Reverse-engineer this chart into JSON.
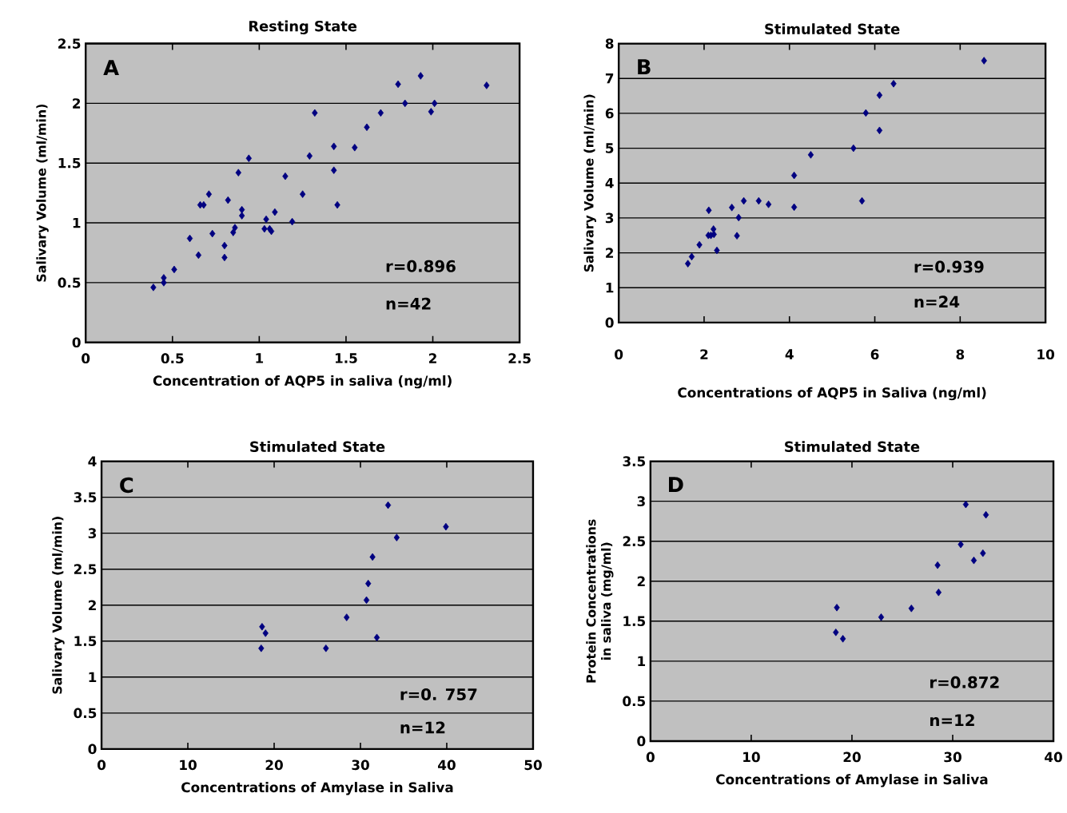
{
  "chart_data": [
    {
      "type": "scatter",
      "title": "Resting State",
      "xlabel": "Concentration of AQP5 in saliva (ng/ml)",
      "ylabel": "Salivary Volume (ml/min)",
      "annotations": [
        "A",
        "r=0.896",
        "n=42"
      ],
      "xlim": [
        0,
        2.5
      ],
      "ylim": [
        0,
        2.5
      ],
      "xticks": [
        0,
        0.5,
        1,
        1.5,
        2,
        2.5
      ],
      "yticks": [
        0,
        0.5,
        1,
        1.5,
        2,
        2.5
      ],
      "grid": "y",
      "marker": "diamond",
      "x": [
        0.39,
        0.45,
        0.45,
        0.51,
        0.6,
        0.65,
        0.66,
        0.68,
        0.71,
        0.73,
        0.8,
        0.8,
        0.82,
        0.85,
        0.86,
        0.88,
        0.9,
        0.9,
        0.94,
        1.03,
        1.04,
        1.06,
        1.07,
        1.09,
        1.15,
        1.19,
        1.25,
        1.29,
        1.32,
        1.43,
        1.43,
        1.45,
        1.55,
        1.62,
        1.7,
        1.8,
        1.84,
        1.93,
        1.99,
        2.01,
        2.31
      ],
      "series": [
        {
          "color": "#000080",
          "values": [
            0.46,
            0.54,
            0.5,
            0.61,
            0.87,
            0.73,
            1.15,
            1.15,
            1.24,
            0.91,
            0.81,
            0.71,
            1.19,
            0.92,
            0.96,
            1.42,
            1.11,
            1.06,
            1.54,
            0.95,
            1.03,
            0.95,
            0.93,
            1.09,
            1.39,
            1.01,
            1.24,
            1.56,
            1.92,
            1.64,
            1.44,
            1.15,
            1.63,
            1.8,
            1.92,
            2.16,
            2.0,
            2.23,
            1.93,
            2.0,
            2.15
          ]
        }
      ]
    },
    {
      "type": "scatter",
      "title": "Stimulated State",
      "xlabel": "Concentrations of AQP5 in Saliva (ng/ml)",
      "ylabel": "Salivary Volume (ml/min)",
      "annotations": [
        "B",
        "r=0.939",
        "n=24"
      ],
      "xlim": [
        0,
        10
      ],
      "ylim": [
        0,
        8
      ],
      "xticks": [
        0,
        2,
        4,
        6,
        8,
        10
      ],
      "yticks": [
        0,
        1,
        2,
        3,
        4,
        5,
        6,
        7,
        8
      ],
      "grid": "y",
      "marker": "diamond",
      "x": [
        1.62,
        1.71,
        1.89,
        2.11,
        2.1,
        2.16,
        2.22,
        2.23,
        2.3,
        2.65,
        2.77,
        2.81,
        2.93,
        3.28,
        3.51,
        4.11,
        4.11,
        4.5,
        5.5,
        5.7,
        5.79,
        6.11,
        6.11,
        6.44,
        8.56
      ],
      "series": [
        {
          "color": "#000080",
          "values": [
            1.69,
            1.89,
            2.23,
            3.22,
            2.5,
            2.5,
            2.68,
            2.53,
            2.07,
            3.3,
            2.49,
            3.01,
            3.49,
            3.49,
            3.39,
            4.22,
            3.31,
            4.81,
            5.0,
            3.49,
            6.01,
            5.51,
            6.52,
            6.85,
            7.51
          ]
        }
      ]
    },
    {
      "type": "scatter",
      "title": "Stimulated State",
      "xlabel": "Concentrations of Amylase in Saliva",
      "ylabel": "Salivary Volume (ml/min)",
      "annotations": [
        "C",
        "r=0. 757",
        "n=12"
      ],
      "xlim": [
        0,
        50
      ],
      "ylim": [
        0,
        4
      ],
      "xticks": [
        0,
        10,
        20,
        30,
        40,
        50
      ],
      "yticks": [
        0,
        0.5,
        1,
        1.5,
        2,
        2.5,
        3,
        3.5,
        4
      ],
      "grid": "y",
      "marker": "diamond",
      "x": [
        33.2,
        39.9,
        34.2,
        31.4,
        30.9,
        30.7,
        28.4,
        31.9,
        18.6,
        19.0,
        18.5,
        26.0
      ],
      "series": [
        {
          "color": "#000080",
          "values": [
            3.39,
            3.09,
            2.94,
            2.67,
            2.3,
            2.07,
            1.83,
            1.55,
            1.7,
            1.61,
            1.4,
            1.4
          ]
        }
      ]
    },
    {
      "type": "scatter",
      "title": "Stimulated State",
      "xlabel": "Concentrations of Amylase in Saliva",
      "ylabel": "Protein Concentrations in saliva (mg/ml)",
      "annotations": [
        "D",
        "r=0.872",
        "n=12"
      ],
      "xlim": [
        0,
        40
      ],
      "ylim": [
        0,
        3.5
      ],
      "xticks": [
        0,
        10,
        20,
        30,
        40
      ],
      "yticks": [
        0,
        0.5,
        1,
        1.5,
        2,
        2.5,
        3,
        3.5
      ],
      "grid": "y",
      "marker": "diamond",
      "x": [
        31.3,
        33.3,
        30.8,
        33.0,
        32.1,
        28.5,
        28.6,
        25.9,
        22.9,
        18.5,
        18.4,
        19.1
      ],
      "series": [
        {
          "color": "#000080",
          "values": [
            2.96,
            2.83,
            2.46,
            2.35,
            2.26,
            2.2,
            1.86,
            1.66,
            1.55,
            1.67,
            1.36,
            1.28
          ]
        }
      ]
    }
  ]
}
